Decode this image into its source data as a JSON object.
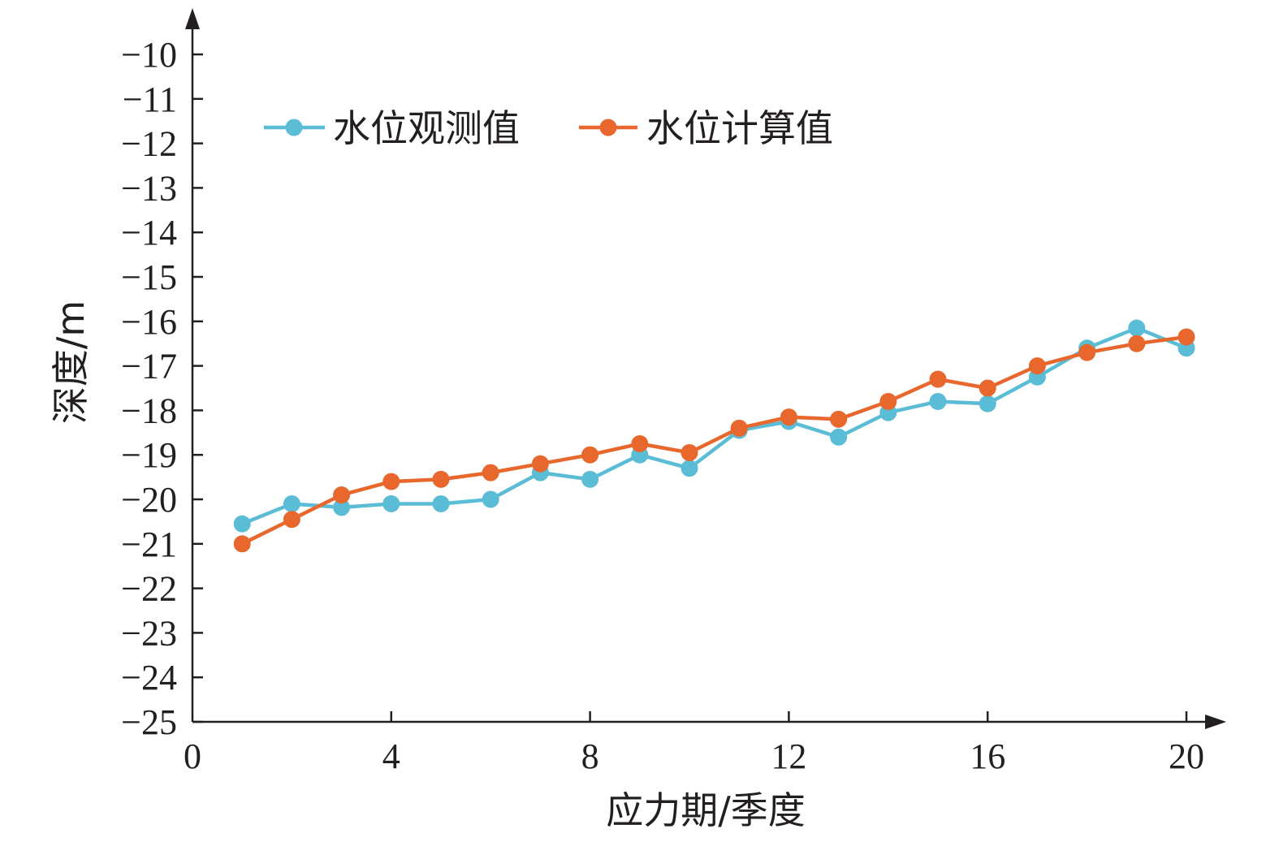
{
  "chart_data": {
    "type": "line",
    "xlabel": "应力期/季度",
    "ylabel": "深度/m",
    "xlim": [
      0,
      20
    ],
    "ylim": [
      -25,
      -9
    ],
    "x_ticks": [
      0,
      4,
      8,
      12,
      16,
      20
    ],
    "y_ticks": [
      -25,
      -24,
      -23,
      -22,
      -21,
      -20,
      -19,
      -18,
      -17,
      -16,
      -15,
      -14,
      -13,
      -12,
      -11,
      -10
    ],
    "x_tick_labels": [
      "0",
      "4",
      "8",
      "12",
      "16",
      "20"
    ],
    "y_tick_labels": [
      "−25",
      "−24",
      "−23",
      "−22",
      "−21",
      "−20",
      "−19",
      "−18",
      "−17",
      "−16",
      "−15",
      "−14",
      "−13",
      "−12",
      "−11",
      "−10"
    ],
    "x": [
      1,
      2,
      3,
      4,
      5,
      6,
      7,
      8,
      9,
      10,
      11,
      12,
      13,
      14,
      15,
      16,
      17,
      18,
      19,
      20
    ],
    "series": [
      {
        "name": "水位观测值",
        "color": "#5bbcd6",
        "values": [
          -20.55,
          -20.1,
          -20.18,
          -20.1,
          -20.1,
          -20.0,
          -19.4,
          -19.55,
          -19.0,
          -19.3,
          -18.45,
          -18.25,
          -18.6,
          -18.05,
          -17.8,
          -17.85,
          -17.25,
          -16.6,
          -16.15,
          -16.6
        ]
      },
      {
        "name": "水位计算值",
        "color": "#e8672d",
        "values": [
          -21.0,
          -20.45,
          -19.9,
          -19.6,
          -19.55,
          -19.4,
          -19.2,
          -19.0,
          -18.75,
          -18.95,
          -18.4,
          -18.15,
          -18.2,
          -17.8,
          -17.3,
          -17.5,
          -17.0,
          -16.7,
          -16.5,
          -16.35
        ]
      }
    ],
    "legend_position": "top-left"
  }
}
